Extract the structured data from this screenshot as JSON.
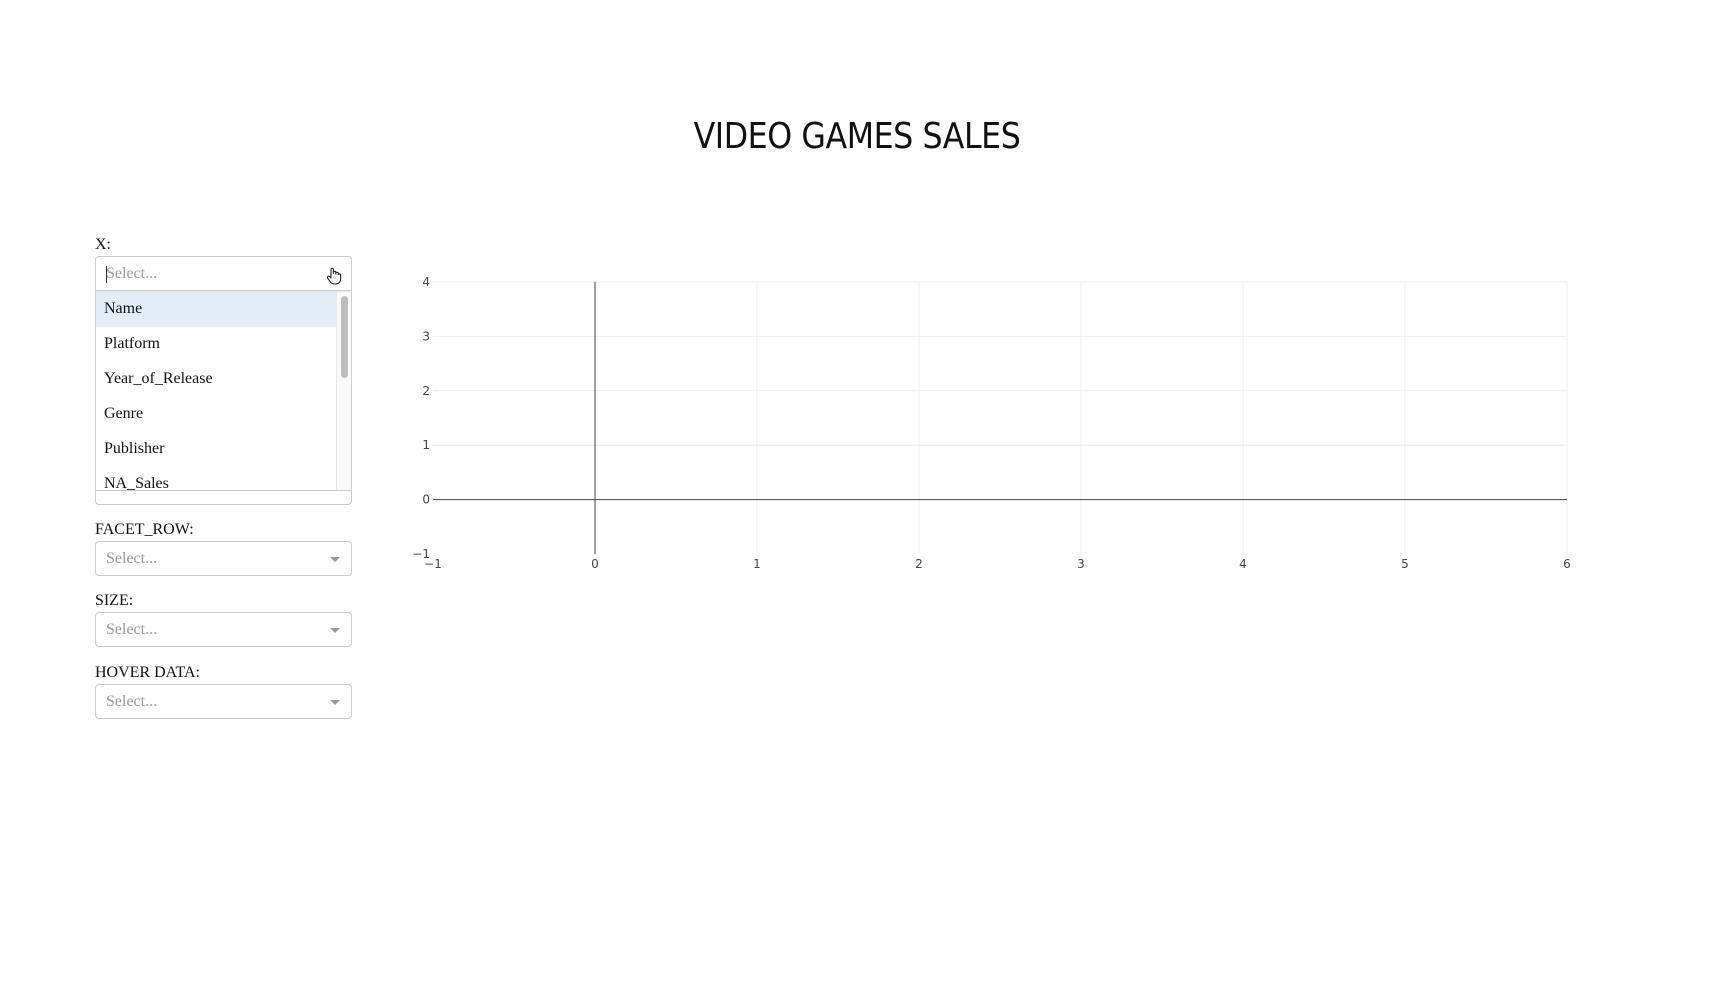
{
  "page": {
    "title": "VIDEO GAMES SALES"
  },
  "controls": {
    "x": {
      "label": "X:",
      "placeholder": "Select...",
      "open": true,
      "options": [
        "Name",
        "Platform",
        "Year_of_Release",
        "Genre",
        "Publisher",
        "NA_Sales"
      ],
      "focused_option": "Name"
    },
    "facet_row": {
      "label": "FACET_ROW:",
      "placeholder": "Select..."
    },
    "size": {
      "label": "SIZE:",
      "placeholder": "Select..."
    },
    "hover_data": {
      "label": "HOVER DATA:",
      "placeholder": "Select..."
    }
  },
  "chart_data": {
    "type": "scatter",
    "title": "",
    "xlabel": "",
    "ylabel": "",
    "xlim": [
      -1,
      6
    ],
    "ylim": [
      -1,
      4
    ],
    "x_ticks": [
      "−1",
      "0",
      "1",
      "2",
      "3",
      "4",
      "5",
      "6"
    ],
    "y_ticks": [
      "−1",
      "0",
      "1",
      "2",
      "3",
      "4"
    ],
    "series": [],
    "grid": true
  },
  "colors": {
    "focused_option_bg": "#e3eef9",
    "grid": "#eeeeee",
    "zero_line": "#444444",
    "border": "#cccccc",
    "placeholder": "#999999"
  }
}
